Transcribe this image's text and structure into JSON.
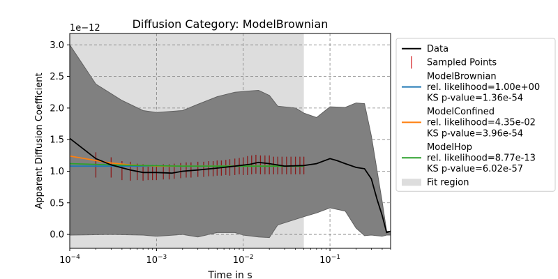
{
  "chart_data": {
    "type": "line",
    "title": "Diffusion Category: ModelBrownian",
    "xlabel": "Time in s",
    "ylabel": "Apparent Diffusion Coefficient",
    "y_offset_label": "1e−12",
    "xscale": "log",
    "xlim": [
      0.0001,
      0.5
    ],
    "ylim": [
      -0.22,
      3.18
    ],
    "grid": true,
    "legend_position": "outside-right",
    "x_ticks": [
      {
        "value": 0.0001,
        "base": "10",
        "exp": "−4"
      },
      {
        "value": 0.001,
        "base": "10",
        "exp": "−3"
      },
      {
        "value": 0.01,
        "base": "10",
        "exp": "−2"
      },
      {
        "value": 0.1,
        "base": "10",
        "exp": "−1"
      }
    ],
    "y_ticks": [
      {
        "value": 0.0,
        "label": "0.0"
      },
      {
        "value": 0.5,
        "label": "0.5"
      },
      {
        "value": 1.0,
        "label": "1.0"
      },
      {
        "value": 1.5,
        "label": "1.5"
      },
      {
        "value": 2.0,
        "label": "2.0"
      },
      {
        "value": 2.5,
        "label": "2.5"
      },
      {
        "value": 3.0,
        "label": "3.0"
      }
    ],
    "fit_region": [
      0.0001,
      0.05
    ],
    "confidence_band": {
      "upper": [
        [
          0.0001,
          3.0
        ],
        [
          0.0002,
          2.38
        ],
        [
          0.0004,
          2.12
        ],
        [
          0.0007,
          1.96
        ],
        [
          0.001,
          1.93
        ],
        [
          0.002,
          1.96
        ],
        [
          0.003,
          2.06
        ],
        [
          0.005,
          2.18
        ],
        [
          0.008,
          2.25
        ],
        [
          0.012,
          2.27
        ],
        [
          0.015,
          2.28
        ],
        [
          0.02,
          2.2
        ],
        [
          0.025,
          2.03
        ],
        [
          0.04,
          2.0
        ],
        [
          0.05,
          1.92
        ],
        [
          0.07,
          1.85
        ],
        [
          0.1,
          2.02
        ],
        [
          0.15,
          2.01
        ],
        [
          0.2,
          2.08
        ],
        [
          0.25,
          2.07
        ],
        [
          0.3,
          1.56
        ],
        [
          0.4,
          0.52
        ],
        [
          0.45,
          0.05
        ],
        [
          0.5,
          0.05
        ]
      ],
      "lower": [
        [
          0.0001,
          -0.01
        ],
        [
          0.0003,
          0.0
        ],
        [
          0.0007,
          -0.01
        ],
        [
          0.001,
          -0.03
        ],
        [
          0.002,
          0.0
        ],
        [
          0.003,
          -0.04
        ],
        [
          0.005,
          0.03
        ],
        [
          0.008,
          0.03
        ],
        [
          0.01,
          -0.01
        ],
        [
          0.015,
          -0.04
        ],
        [
          0.02,
          -0.05
        ],
        [
          0.025,
          0.15
        ],
        [
          0.05,
          0.28
        ],
        [
          0.07,
          0.34
        ],
        [
          0.1,
          0.42
        ],
        [
          0.15,
          0.37
        ],
        [
          0.2,
          0.1
        ],
        [
          0.25,
          -0.02
        ],
        [
          0.3,
          -0.01
        ],
        [
          0.4,
          -0.03
        ],
        [
          0.45,
          -0.01
        ],
        [
          0.5,
          -0.01
        ]
      ]
    },
    "data_line": [
      [
        0.0001,
        1.52
      ],
      [
        0.0002,
        1.2
      ],
      [
        0.0003,
        1.1
      ],
      [
        0.0005,
        1.02
      ],
      [
        0.0007,
        0.98
      ],
      [
        0.001,
        0.98
      ],
      [
        0.0015,
        0.97
      ],
      [
        0.002,
        1.0
      ],
      [
        0.003,
        1.02
      ],
      [
        0.005,
        1.05
      ],
      [
        0.008,
        1.08
      ],
      [
        0.012,
        1.11
      ],
      [
        0.015,
        1.14
      ],
      [
        0.02,
        1.12
      ],
      [
        0.03,
        1.08
      ],
      [
        0.05,
        1.09
      ],
      [
        0.07,
        1.12
      ],
      [
        0.1,
        1.2
      ],
      [
        0.12,
        1.17
      ],
      [
        0.15,
        1.12
      ],
      [
        0.2,
        1.06
      ],
      [
        0.25,
        1.04
      ],
      [
        0.3,
        0.88
      ],
      [
        0.35,
        0.55
      ],
      [
        0.4,
        0.3
      ],
      [
        0.45,
        0.03
      ],
      [
        0.5,
        0.05
      ]
    ],
    "sampled_points": [
      {
        "x": 0.0002,
        "y": 1.1,
        "err": 0.2
      },
      {
        "x": 0.0003,
        "y": 1.06,
        "err": 0.16
      },
      {
        "x": 0.0004,
        "y": 1.01,
        "err": 0.15
      },
      {
        "x": 0.0005,
        "y": 1.0,
        "err": 0.15
      },
      {
        "x": 0.0006,
        "y": 0.99,
        "err": 0.13
      },
      {
        "x": 0.0007,
        "y": 0.98,
        "err": 0.13
      },
      {
        "x": 0.0008,
        "y": 0.98,
        "err": 0.12
      },
      {
        "x": 0.0009,
        "y": 0.98,
        "err": 0.12
      },
      {
        "x": 0.001,
        "y": 0.98,
        "err": 0.12
      },
      {
        "x": 0.0012,
        "y": 0.99,
        "err": 0.12
      },
      {
        "x": 0.0014,
        "y": 0.99,
        "err": 0.12
      },
      {
        "x": 0.0016,
        "y": 1.0,
        "err": 0.12
      },
      {
        "x": 0.0019,
        "y": 1.01,
        "err": 0.12
      },
      {
        "x": 0.0022,
        "y": 1.02,
        "err": 0.12
      },
      {
        "x": 0.0025,
        "y": 1.02,
        "err": 0.12
      },
      {
        "x": 0.003,
        "y": 1.03,
        "err": 0.12
      },
      {
        "x": 0.0035,
        "y": 1.03,
        "err": 0.12
      },
      {
        "x": 0.004,
        "y": 1.04,
        "err": 0.12
      },
      {
        "x": 0.0045,
        "y": 1.04,
        "err": 0.12
      },
      {
        "x": 0.005,
        "y": 1.05,
        "err": 0.12
      },
      {
        "x": 0.0056,
        "y": 1.05,
        "err": 0.12
      },
      {
        "x": 0.0063,
        "y": 1.06,
        "err": 0.12
      },
      {
        "x": 0.007,
        "y": 1.06,
        "err": 0.13
      },
      {
        "x": 0.008,
        "y": 1.07,
        "err": 0.13
      },
      {
        "x": 0.009,
        "y": 1.08,
        "err": 0.13
      },
      {
        "x": 0.01,
        "y": 1.08,
        "err": 0.14
      },
      {
        "x": 0.0112,
        "y": 1.09,
        "err": 0.15
      },
      {
        "x": 0.0125,
        "y": 1.1,
        "err": 0.15
      },
      {
        "x": 0.014,
        "y": 1.11,
        "err": 0.15
      },
      {
        "x": 0.0158,
        "y": 1.1,
        "err": 0.15
      },
      {
        "x": 0.0178,
        "y": 1.1,
        "err": 0.15
      },
      {
        "x": 0.02,
        "y": 1.1,
        "err": 0.15
      },
      {
        "x": 0.0224,
        "y": 1.09,
        "err": 0.14
      },
      {
        "x": 0.025,
        "y": 1.09,
        "err": 0.14
      },
      {
        "x": 0.028,
        "y": 1.09,
        "err": 0.14
      },
      {
        "x": 0.0316,
        "y": 1.09,
        "err": 0.14
      },
      {
        "x": 0.0355,
        "y": 1.09,
        "err": 0.14
      },
      {
        "x": 0.04,
        "y": 1.09,
        "err": 0.14
      },
      {
        "x": 0.045,
        "y": 1.09,
        "err": 0.14
      },
      {
        "x": 0.05,
        "y": 1.09,
        "err": 0.14
      }
    ],
    "fits": [
      {
        "name": "ModelBrownian",
        "color": "#1f77b4",
        "points": [
          [
            0.0001,
            1.08
          ],
          [
            0.05,
            1.08
          ]
        ]
      },
      {
        "name": "ModelConfined",
        "color": "#ff7f0e",
        "points": [
          [
            0.0001,
            1.24
          ],
          [
            0.0002,
            1.17
          ],
          [
            0.0003,
            1.13
          ],
          [
            0.0005,
            1.1
          ],
          [
            0.001,
            1.08
          ],
          [
            0.003,
            1.08
          ],
          [
            0.05,
            1.08
          ]
        ]
      },
      {
        "name": "ModelHop",
        "color": "#2ca02c",
        "points": [
          [
            0.0001,
            1.12
          ],
          [
            0.0003,
            1.1
          ],
          [
            0.0007,
            1.09
          ],
          [
            0.002,
            1.08
          ],
          [
            0.05,
            1.08
          ]
        ]
      }
    ],
    "legend": [
      {
        "kind": "line",
        "color": "#000000",
        "lines": [
          "Data"
        ]
      },
      {
        "kind": "vline",
        "color": "#d62728",
        "lines": [
          "Sampled Points"
        ]
      },
      {
        "kind": "line",
        "color": "#1f77b4",
        "lines": [
          "ModelBrownian",
          "rel. likelihood=1.00e+00",
          "KS p-value=1.36e-54"
        ]
      },
      {
        "kind": "line",
        "color": "#ff7f0e",
        "lines": [
          "ModelConfined",
          "rel. likelihood=4.35e-02",
          "KS p-value=3.96e-54"
        ]
      },
      {
        "kind": "line",
        "color": "#2ca02c",
        "lines": [
          "ModelHop",
          "rel. likelihood=8.77e-13",
          "KS p-value=6.02e-57"
        ]
      },
      {
        "kind": "patch",
        "color": "#dddddd",
        "lines": [
          "Fit region"
        ]
      }
    ]
  }
}
